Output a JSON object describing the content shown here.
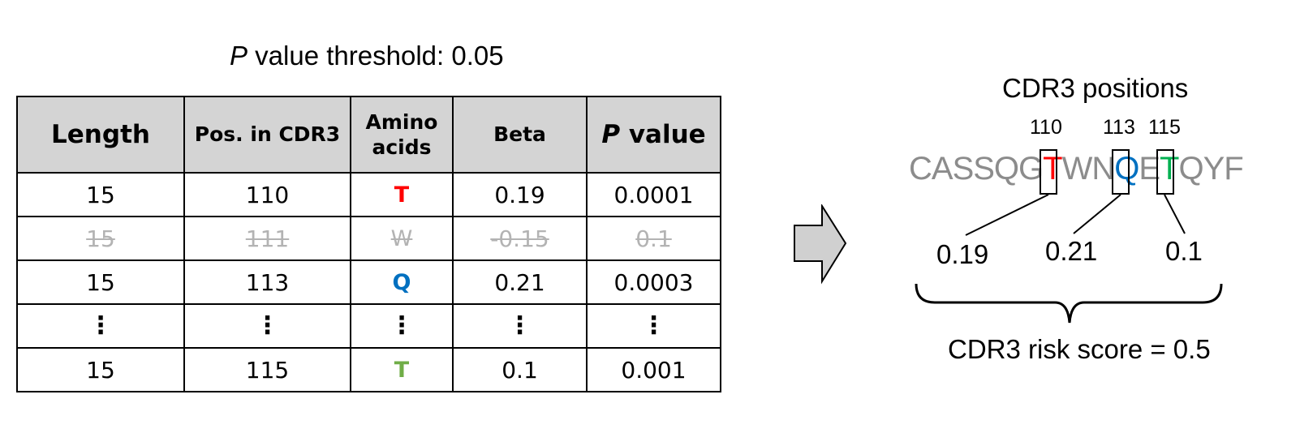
{
  "threshold": {
    "p_label": "P",
    "text": " value threshold: 0.05"
  },
  "table": {
    "headers": {
      "length": "Length",
      "pos": "Pos. in CDR3",
      "aa_line1": "Amino",
      "aa_line2": "acids",
      "beta": "Beta",
      "p_italic": "P",
      "p_rest": " value"
    },
    "rows": [
      {
        "length": "15",
        "pos": "110",
        "aa": "T",
        "beta": "0.19",
        "p": "0.0001",
        "aa_color": "#ff0000"
      },
      {
        "length": "15",
        "pos": "111",
        "aa": "W",
        "beta": "-0.15",
        "p": "0.1",
        "aa_color": "#b3b3b3"
      },
      {
        "length": "15",
        "pos": "113",
        "aa": "Q",
        "beta": "0.21",
        "p": "0.0003",
        "aa_color": "#0070c0"
      },
      {
        "length": "⋮",
        "pos": "⋮",
        "aa": "⋮",
        "beta": "⋮",
        "p": "⋮"
      },
      {
        "length": "15",
        "pos": "115",
        "aa": "T",
        "beta": "0.1",
        "p": "0.001",
        "aa_color": "#70ad47"
      }
    ]
  },
  "cdr3": {
    "title": "CDR3 positions",
    "positions": [
      "110",
      "113",
      "115"
    ],
    "sequence": {
      "part1": "CASSQG",
      "t1": "T",
      "part2": "WN",
      "q": "Q",
      "part3": "E",
      "t2": "T",
      "part4": "QYF"
    },
    "highlight_colors": {
      "t1": "#ff0000",
      "q": "#0070c0",
      "t2": "#00b050"
    },
    "betas": [
      "0.19",
      "0.21",
      "0.1"
    ],
    "risk_score": "CDR3 risk score = 0.5"
  },
  "colors": {
    "header_fill": "#d4d4d4",
    "arrow_fill": "#d0d0d0",
    "excluded_text": "#b3b3b3"
  }
}
